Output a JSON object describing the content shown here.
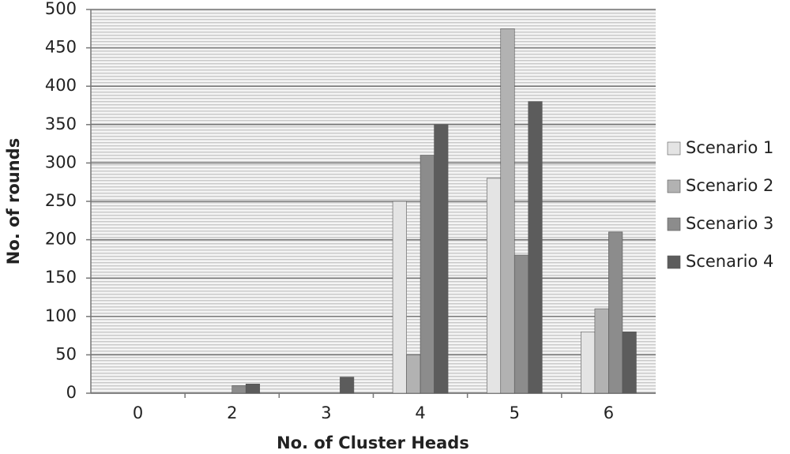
{
  "chart_data": {
    "type": "bar",
    "x_label": "No. of Cluster Heads",
    "y_label": "No. of rounds",
    "categories": [
      "0",
      "2",
      "3",
      "4",
      "5",
      "6"
    ],
    "series": [
      {
        "name": "Scenario 1",
        "color": "#e4e4e4",
        "values": [
          0,
          0,
          0,
          250,
          280,
          80
        ]
      },
      {
        "name": "Scenario 2",
        "color": "#b2b2b2",
        "values": [
          0,
          0,
          0,
          50,
          475,
          110
        ]
      },
      {
        "name": "Scenario 3",
        "color": "#8c8c8c",
        "values": [
          0,
          10,
          0,
          310,
          180,
          210
        ]
      },
      {
        "name": "Scenario 4",
        "color": "#5c5c5c",
        "values": [
          0,
          12,
          21,
          350,
          380,
          80
        ]
      }
    ],
    "ylim": [
      0,
      500
    ],
    "yticks": [
      0,
      50,
      100,
      150,
      200,
      250,
      300,
      350,
      400,
      450,
      500
    ],
    "grid": true,
    "legend": "right"
  }
}
